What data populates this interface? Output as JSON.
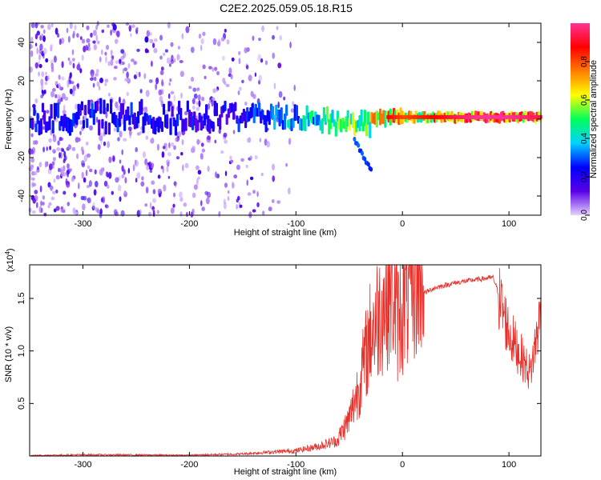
{
  "title": "C2E2.2025.059.05.18.R15",
  "chart_data": [
    {
      "type": "heatmap",
      "title": "C2E2.2025.059.05.18.R15",
      "xlabel": "Height of straight line (km)",
      "ylabel": "Frequency (Hz)",
      "xlim": [
        -350,
        130
      ],
      "ylim": [
        -50,
        50
      ],
      "x_ticks": [
        -300,
        -200,
        -100,
        0,
        100
      ],
      "y_ticks": [
        -40,
        -20,
        0,
        20,
        40
      ],
      "colorbar": {
        "label": "Normalized spectral amplitude",
        "range": [
          0,
          1
        ],
        "ticks": [
          "0.0",
          "0.2",
          "0.4",
          "0.6",
          "0.8"
        ],
        "colormap": [
          "#e6d2ff",
          "#5a00e6",
          "#0000ff",
          "#00d2ff",
          "#00ff5a",
          "#ffff00",
          "#ff7d00",
          "#ff0000",
          "#ff3296"
        ]
      },
      "band_profile": {
        "x": [
          -350,
          -250,
          -200,
          -150,
          -100,
          -80,
          -60,
          -45,
          -40,
          -30,
          -20,
          0,
          20,
          50,
          80,
          100,
          130
        ],
        "amplitude": [
          0.15,
          0.18,
          0.22,
          0.3,
          0.45,
          0.5,
          0.55,
          0.6,
          0.62,
          0.7,
          0.85,
          0.75,
          0.8,
          0.9,
          0.98,
          0.95,
          0.88
        ]
      }
    },
    {
      "type": "line",
      "xlabel": "Height of straight line (km)",
      "ylabel": "SNR (10 * v/v)",
      "scale_note": "(x10",
      "scale_exp": "4",
      "xlim": [
        -350,
        130
      ],
      "ylim": [
        0,
        18200
      ],
      "x_ticks": [
        -300,
        -200,
        -100,
        0,
        100
      ],
      "y_ticks": [
        {
          "value": 5000,
          "label": "0.5"
        },
        {
          "value": 10000,
          "label": "1.0"
        },
        {
          "value": 15000,
          "label": "1.5"
        }
      ],
      "color": "#e8302a",
      "series": [
        {
          "x": [
            -350,
            -300,
            -250,
            -200,
            -150,
            -120,
            -100,
            -80,
            -60,
            -50,
            -40,
            -30,
            -20,
            -10,
            -5,
            0,
            10,
            20,
            30,
            50,
            70,
            85,
            92,
            100,
            110,
            120,
            130
          ],
          "y": [
            50,
            120,
            100,
            80,
            200,
            400,
            500,
            900,
            1500,
            3000,
            6000,
            10000,
            12000,
            14000,
            11000,
            12000,
            14000,
            15500,
            16000,
            16500,
            16800,
            17000,
            15000,
            12000,
            10000,
            8000,
            14000
          ]
        }
      ]
    }
  ]
}
